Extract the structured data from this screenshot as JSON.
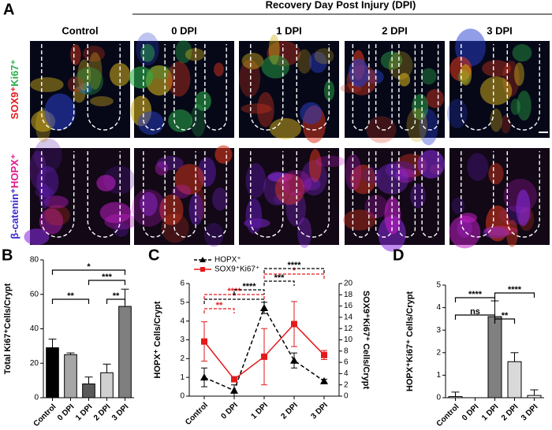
{
  "figure": {
    "panel_a": {
      "panel": "A",
      "header": "Recovery Day Post Injury (DPI)",
      "columns": [
        "Control",
        "0 DPI",
        "1 DPI",
        "2 DPI",
        "3 DPI"
      ],
      "row_labels": [
        [
          "SOX9⁺",
          "Ki67⁺"
        ],
        [
          "β-catenin⁺",
          "HOPX⁺"
        ]
      ]
    }
  },
  "chart_data": [
    {
      "type": "bar",
      "panel": "B",
      "ylabel": "Total Ki67⁺Cells/Crypt",
      "categories": [
        "Control",
        "0 DPI",
        "1 DPI",
        "2 DPI",
        "3 DPI"
      ],
      "values": [
        29,
        25,
        8,
        14.5,
        53
      ],
      "errors": [
        5,
        1,
        4,
        5,
        10
      ],
      "colors": [
        "#000000",
        "#a6a6a6",
        "#595959",
        "#d0d0d0",
        "#7f7f7f"
      ],
      "ylim": [
        0,
        80
      ],
      "yticks": [
        0,
        20,
        40,
        60,
        80
      ],
      "annotations": [
        {
          "text": "*",
          "between": [
            "Control",
            "3 DPI"
          ]
        },
        {
          "text": "**",
          "between": [
            "Control",
            "1 DPI"
          ]
        },
        {
          "text": "***",
          "between": [
            "1 DPI",
            "3 DPI"
          ]
        },
        {
          "text": "**",
          "between": [
            "2 DPI",
            "3 DPI"
          ]
        }
      ]
    },
    {
      "type": "line",
      "panel": "C",
      "ylabel": "HOPX⁺ Cells/Crypt",
      "y2label": "SOX9⁺Ki67⁺ Cells/Crypt",
      "categories": [
        "Control",
        "0 DPI",
        "1 DPI",
        "2 DPI",
        "3 DPI"
      ],
      "ylim": [
        0,
        6
      ],
      "yticks": [
        0,
        1,
        2,
        3,
        4,
        5,
        6
      ],
      "y2lim": [
        0,
        20
      ],
      "y2ticks": [
        0,
        2,
        4,
        6,
        8,
        10,
        12,
        14,
        16,
        18,
        20
      ],
      "series": [
        {
          "name": "HOPX⁺",
          "color": "#000000",
          "line_style": "dashed",
          "marker": "triangle",
          "values": [
            1.0,
            0.3,
            4.7,
            1.9,
            0.8
          ],
          "errors": [
            0.5,
            0.3,
            0.3,
            0.4,
            0.1
          ]
        },
        {
          "name": "SOX9⁺Ki67⁺",
          "color": "#e31a1c",
          "line_style": "solid",
          "marker": "square",
          "axis": "y2",
          "values": [
            9.7,
            3,
            7,
            12.8,
            7.3
          ],
          "errors": [
            3.5,
            0.3,
            5,
            4,
            0.8
          ]
        }
      ],
      "annotations": [
        {
          "text": "**",
          "between": [
            "Control",
            "0 DPI"
          ],
          "color": "#e31a1c"
        },
        {
          "text": "*",
          "between": [
            "Control",
            "1 DPI"
          ],
          "color": "#000000"
        },
        {
          "text": "****",
          "between": [
            "Control",
            "1 DPI"
          ],
          "color": "#e31a1c"
        },
        {
          "text": "****",
          "between": [
            "0 DPI",
            "1 DPI"
          ],
          "color": "#000000"
        },
        {
          "text": "***",
          "between": [
            "1 DPI",
            "2 DPI"
          ],
          "color": "#000000"
        },
        {
          "text": "*",
          "between": [
            "1 DPI",
            "3 DPI"
          ],
          "color": "#e31a1c"
        },
        {
          "text": "****",
          "between": [
            "1 DPI",
            "3 DPI"
          ],
          "color": "#000000"
        }
      ]
    },
    {
      "type": "bar",
      "panel": "D",
      "ylabel": "HOPX⁺Ki67⁺ Cells/Crypt",
      "categories": [
        "Control",
        "0 DPI",
        "1 DPI",
        "2 DPI",
        "3 DPI"
      ],
      "values": [
        0.05,
        0,
        3.6,
        1.6,
        0.1
      ],
      "errors": [
        0.2,
        0,
        0.7,
        0.4,
        0.25
      ],
      "colors": [
        "#ffffff",
        "#ffffff",
        "#808080",
        "#d9d9d9",
        "#ffffff"
      ],
      "ylim": [
        0,
        5
      ],
      "yticks": [
        0,
        1,
        2,
        3,
        4,
        5
      ],
      "annotations": [
        {
          "text": "ns",
          "between": [
            "Control",
            "1 DPI"
          ]
        },
        {
          "text": "****",
          "between": [
            "Control",
            "1 DPI"
          ]
        },
        {
          "text": "**",
          "between": [
            "1 DPI",
            "2 DPI"
          ]
        },
        {
          "text": "****",
          "between": [
            "1 DPI",
            "3 DPI"
          ]
        }
      ]
    }
  ]
}
